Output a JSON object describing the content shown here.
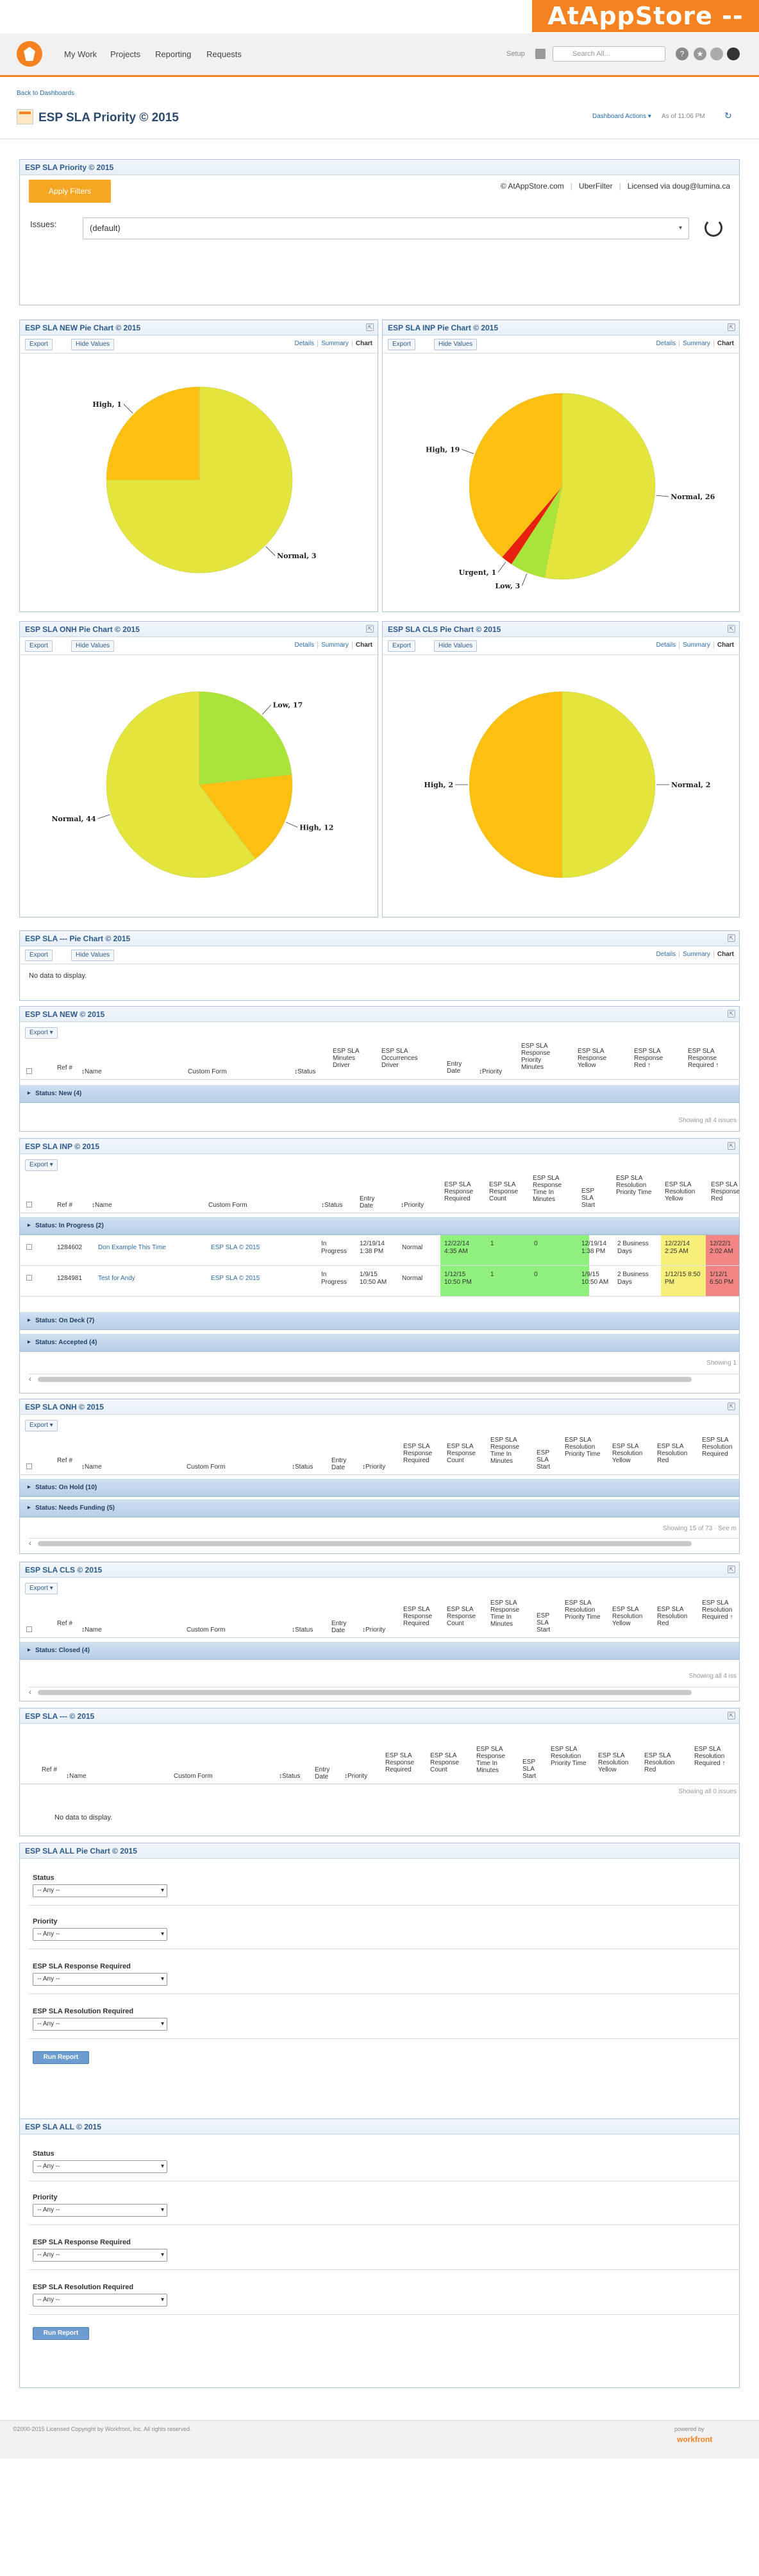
{
  "banner": {
    "org_name": "AtAppStore -- SLA"
  },
  "nav": {
    "items": [
      "My Work",
      "Projects",
      "Reporting",
      "Requests"
    ],
    "setup_label": "Setup",
    "search_placeholder": "Search All..."
  },
  "page": {
    "back_link": "Back to Dashboards",
    "title": "ESP SLA Priority © 2015",
    "dashboard_actions": "Dashboard Actions ▾",
    "as_of": "As of 11:06 PM"
  },
  "filters": {
    "title": "ESP SLA Priority © 2015",
    "apply_label": "Apply Filters",
    "credit_site": "© AtAppStore.com",
    "credit_uber": "UberFilter",
    "credit_license": "Licensed via doug@lumina.ca",
    "issues_label": "Issues:",
    "issues_value": "(default)"
  },
  "common": {
    "export": "Export ▾",
    "export_plain": "Export",
    "hide_values": "Hide Values",
    "tab_details": "Details",
    "tab_summary": "Summary",
    "tab_chart": "Chart",
    "no_data": "No data to display."
  },
  "charts": {
    "new": {
      "title": "ESP SLA NEW Pie Chart © 2015"
    },
    "inp": {
      "title": "ESP SLA INP Pie Chart © 2015"
    },
    "onh": {
      "title": "ESP SLA ONH Pie Chart © 2015"
    },
    "cls": {
      "title": "ESP SLA CLS Pie Chart © 2015"
    },
    "dash": {
      "title": "ESP SLA --- Pie Chart © 2015"
    }
  },
  "chart_data": [
    {
      "type": "pie",
      "title": "ESP SLA NEW Pie Chart © 2015",
      "slices": [
        {
          "label": "Normal",
          "value": 3,
          "color": "#e2e53c"
        },
        {
          "label": "High",
          "value": 1,
          "color": "#fdbf10"
        }
      ]
    },
    {
      "type": "pie",
      "title": "ESP SLA INP Pie Chart © 2015",
      "slices": [
        {
          "label": "Normal",
          "value": 26,
          "color": "#e2e53c"
        },
        {
          "label": "Low",
          "value": 3,
          "color": "#a8e43a"
        },
        {
          "label": "Urgent",
          "value": 1,
          "color": "#e8200e"
        },
        {
          "label": "High",
          "value": 19,
          "color": "#fdbf10"
        }
      ]
    },
    {
      "type": "pie",
      "title": "ESP SLA ONH Pie Chart © 2015",
      "slices": [
        {
          "label": "Low",
          "value": 17,
          "color": "#a8e43a"
        },
        {
          "label": "High",
          "value": 12,
          "color": "#fdbf10"
        },
        {
          "label": "Normal",
          "value": 44,
          "color": "#e2e53c"
        }
      ]
    },
    {
      "type": "pie",
      "title": "ESP SLA CLS Pie Chart © 2015",
      "slices": [
        {
          "label": "Normal",
          "value": 2,
          "color": "#e2e53c"
        },
        {
          "label": "High",
          "value": 2,
          "color": "#fdbf10"
        }
      ]
    }
  ],
  "reports": {
    "new": {
      "title": "ESP SLA NEW © 2015",
      "group": "Status: New (4)",
      "showing": "Showing all 4 issues",
      "headers": [
        "Ref #",
        "↕Name",
        "Custom Form",
        "↕Status",
        "ESP SLA Minutes Driver",
        "ESP SLA Occurrences Driver",
        "Entry Date",
        "↕Priority",
        "ESP SLA Response Priority Minutes",
        "ESP SLA Response Yellow",
        "ESP SLA Response Red ↑",
        "ESP SLA Response Required ↑"
      ]
    },
    "inp": {
      "title": "ESP SLA INP © 2015",
      "headers": [
        "Ref #",
        "↕Name",
        "Custom Form",
        "↕Status",
        "Entry Date",
        "↕Priority",
        "ESP SLA Response Required",
        "ESP SLA Response Count",
        "ESP SLA Response Time In Minutes",
        "ESP SLA Start",
        "ESP SLA Resolution Priority Time",
        "ESP SLA Resolution Yellow",
        "ESP SLA Response Red"
      ],
      "group_in_progress": "Status: In Progress (2)",
      "rows": [
        {
          "ref": "1284602",
          "name": "Don Example This Time",
          "form": "ESP SLA © 2015",
          "status": "In Progress",
          "entry": "12/19/14 1:38 PM",
          "priority": "Normal",
          "resp_req": "12/22/14 4:35 AM",
          "count": "1",
          "minutes": "0",
          "start": "12/19/14 1:38 PM",
          "res_time": "2 Business Days",
          "yellow": "12/22/14 2:25 AM",
          "red": "12/22/1 2:02 AM"
        },
        {
          "ref": "1284981",
          "name": "Test for Andy",
          "form": "ESP SLA © 2015",
          "status": "In Progress",
          "entry": "1/9/15 10:50 AM",
          "priority": "Normal",
          "resp_req": "1/12/15 10:50 PM",
          "count": "1",
          "minutes": "0",
          "start": "1/9/15 10:50 AM",
          "res_time": "2 Business Days",
          "yellow": "1/12/15 8:50 PM",
          "red": "1/12/1 6:50 PM"
        }
      ],
      "group_on_deck": "Status: On Deck (7)",
      "group_accepted": "Status: Accepted (4)",
      "showing": "Showing 1"
    },
    "onh": {
      "title": "ESP SLA ONH © 2015",
      "headers": [
        "Ref #",
        "↕Name",
        "Custom Form",
        "↕Status",
        "Entry Date",
        "↕Priority",
        "ESP SLA Response Required",
        "ESP SLA Response Count",
        "ESP SLA Response Time In Minutes",
        "ESP SLA Start",
        "ESP SLA Resolution Priority Time",
        "ESP SLA Resolution Yellow",
        "ESP SLA Resolution Red",
        "ESP SLA Resolution Required"
      ],
      "group_on_hold": "Status: On Hold (10)",
      "group_needs_funding": "Status: Needs Funding (5)",
      "showing": "Showing 15 of 73 · See m"
    },
    "cls": {
      "title": "ESP SLA CLS © 2015",
      "headers": [
        "Ref #",
        "↕Name",
        "Custom Form",
        "↕Status",
        "Entry Date",
        "↕Priority",
        "ESP SLA Response Required",
        "ESP SLA Response Count",
        "ESP SLA Response Time In Minutes",
        "ESP SLA Start",
        "ESP SLA Resolution Priority Time",
        "ESP SLA Resolution Yellow",
        "ESP SLA Resolution Red",
        "ESP SLA Resolution Required ↑"
      ],
      "group_closed": "Status: Closed (4)",
      "showing": "Showing all 4 iss"
    },
    "dash": {
      "title": "ESP SLA --- © 2015",
      "headers": [
        "Ref #",
        "↕Name",
        "Custom Form",
        "↕Status",
        "Entry Date",
        "↕Priority",
        "ESP SLA Response Required",
        "ESP SLA Response Count",
        "ESP SLA Response Time In Minutes",
        "ESP SLA Start",
        "ESP SLA Resolution Priority Time",
        "ESP SLA Resolution Yellow",
        "ESP SLA Resolution Red",
        "ESP SLA Resolution Required ↑"
      ],
      "showing": "Showing all 0 issues"
    }
  },
  "forms": {
    "all_pie": {
      "title": "ESP SLA ALL Pie Chart © 2015"
    },
    "all": {
      "title": "ESP SLA ALL © 2015"
    },
    "labels": {
      "status": "Status",
      "priority": "Priority",
      "resp": "ESP SLA Response Required",
      "res": "ESP SLA Resolution Required"
    },
    "any": "-- Any --",
    "run": "Run Report"
  },
  "footer": {
    "copyright": "©2000-2015 Licensed Copyright by Workfront, Inc. All rights reserved.",
    "powered": "powered by",
    "brand": "workfront"
  }
}
